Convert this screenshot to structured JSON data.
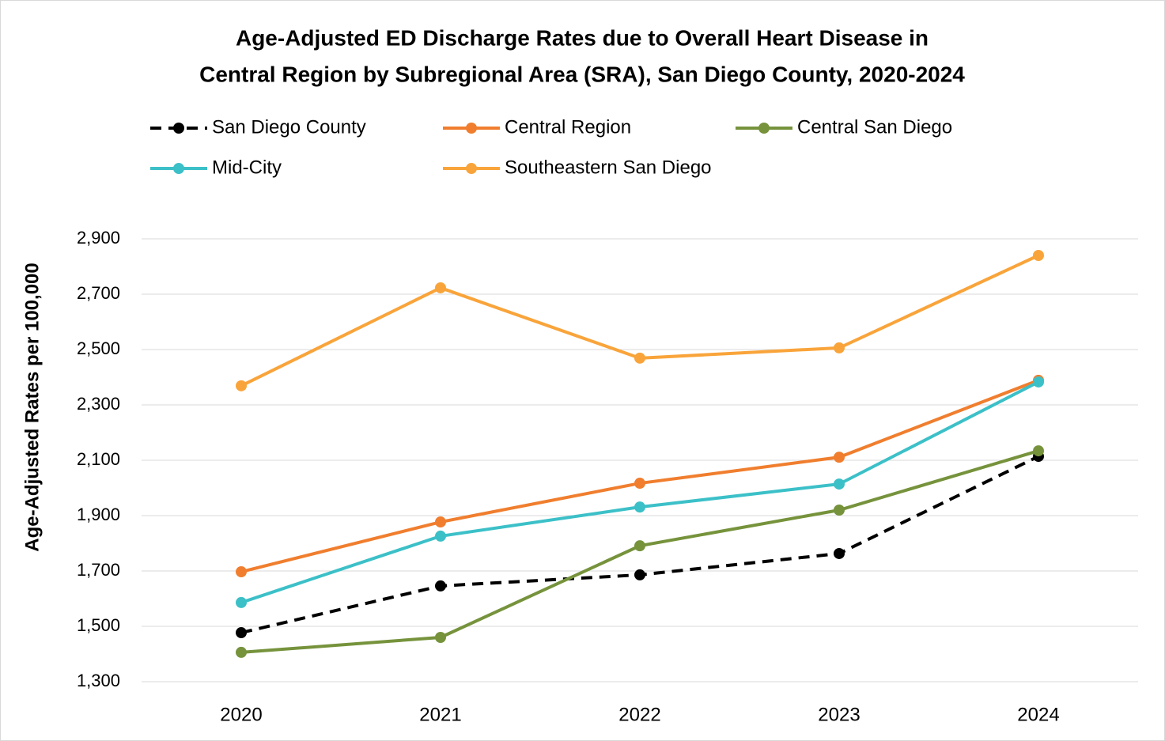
{
  "chart_data": {
    "type": "line",
    "title": [
      "Age-Adjusted ED Discharge Rates due to Overall Heart Disease in",
      "Central Region by Subregional Area (SRA), San Diego County, 2020-2024"
    ],
    "y_label": "Age-Adjusted Rates per 100,000",
    "categories": [
      "2020",
      "2021",
      "2022",
      "2023",
      "2024"
    ],
    "series": [
      {
        "name": "San Diego County",
        "color": "#000000",
        "dashed": true,
        "values": [
          1477,
          1646,
          1686,
          1763,
          2114
        ]
      },
      {
        "name": "Central Region",
        "color": "#f07e2e",
        "values": [
          1697,
          1877,
          2017,
          2111,
          2389
        ]
      },
      {
        "name": "Central San Diego",
        "color": "#76933c",
        "values": [
          1406,
          1460,
          1791,
          1920,
          2134
        ]
      },
      {
        "name": "Mid-City",
        "color": "#3cc0c8",
        "values": [
          1586,
          1826,
          1931,
          2014,
          2383
        ]
      },
      {
        "name": "Southeastern San Diego",
        "color": "#f9a43a",
        "values": [
          2369,
          2723,
          2469,
          2506,
          2840
        ]
      }
    ],
    "ylim": [
      1300,
      2900
    ],
    "yticks": [
      {
        "value": 1300,
        "label": "1,300"
      },
      {
        "value": 1500,
        "label": "1,500"
      },
      {
        "value": 1700,
        "label": "1,700"
      },
      {
        "value": 1900,
        "label": "1,900"
      },
      {
        "value": 2100,
        "label": "2,100"
      },
      {
        "value": 2300,
        "label": "2,300"
      },
      {
        "value": 2500,
        "label": "2,500"
      },
      {
        "value": 2700,
        "label": "2,700"
      },
      {
        "value": 2900,
        "label": "2,900"
      }
    ],
    "grid": true,
    "legend": "top"
  }
}
